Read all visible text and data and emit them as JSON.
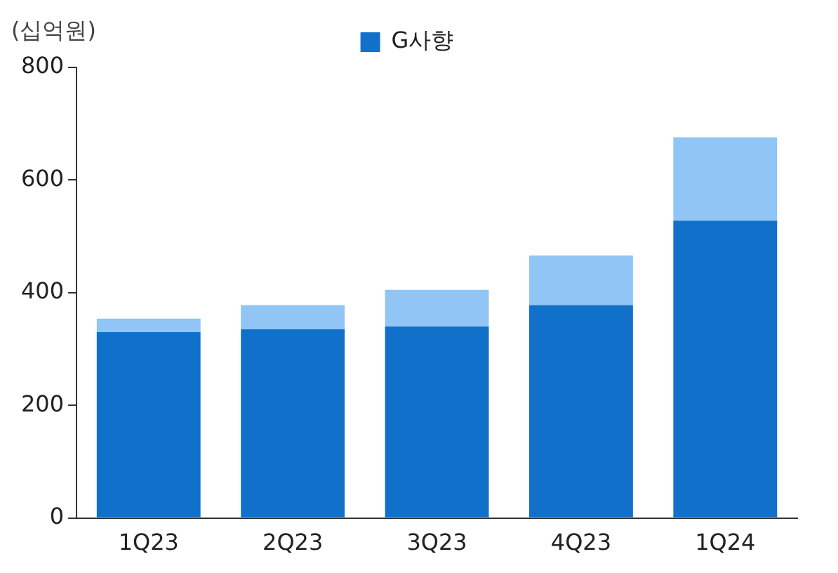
{
  "chart_data": {
    "type": "bar",
    "ylabel": "(십억원)",
    "categories": [
      "1Q23",
      "2Q23",
      "3Q23",
      "4Q23",
      "1Q24"
    ],
    "series": [
      {
        "name": "G사향",
        "color": "#1170c9",
        "values": [
          330,
          335,
          340,
          378,
          528
        ]
      },
      {
        "color": "#90c5f5",
        "values": [
          24,
          43,
          65,
          88,
          148
        ]
      }
    ],
    "stacked": true,
    "ylim": [
      0,
      800
    ],
    "yticks": [
      0,
      200,
      400,
      600,
      800
    ],
    "grid": false,
    "legend": "top"
  }
}
